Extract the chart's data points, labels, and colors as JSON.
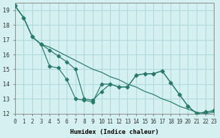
{
  "xlabel": "Humidex (Indice chaleur)",
  "ylabel": "",
  "background_color": "#d4f0f0",
  "grid_color": "#b0d8d8",
  "line_color": "#2a7a6a",
  "xlim": [
    0,
    23
  ],
  "ylim": [
    12,
    19.5
  ],
  "yticks": [
    12,
    13,
    14,
    15,
    16,
    17,
    18,
    19
  ],
  "xticks": [
    0,
    1,
    2,
    3,
    4,
    5,
    6,
    7,
    8,
    9,
    10,
    11,
    12,
    13,
    14,
    15,
    16,
    17,
    18,
    19,
    20,
    21,
    22,
    23
  ],
  "series": [
    [
      19.3,
      18.5,
      17.2,
      16.7,
      16.5,
      16.2,
      15.9,
      15.6,
      15.3,
      15.0,
      14.8,
      14.5,
      14.3,
      14.0,
      13.8,
      13.5,
      13.3,
      13.0,
      12.8,
      12.5,
      12.3,
      12.1,
      12.0,
      12.1
    ],
    [
      19.3,
      18.5,
      17.2,
      16.7,
      16.3,
      15.9,
      15.5,
      15.0,
      13.0,
      12.9,
      13.5,
      14.0,
      13.8,
      13.8,
      14.6,
      14.7,
      14.7,
      14.9,
      14.1,
      13.3,
      12.5,
      12.0,
      12.1,
      12.2
    ],
    [
      19.3,
      18.5,
      17.2,
      16.7,
      15.2,
      15.1,
      14.3,
      13.0,
      12.9,
      12.8,
      14.0,
      14.0,
      13.8,
      13.8,
      14.6,
      14.7,
      14.7,
      14.9,
      14.1,
      13.3,
      12.5,
      12.0,
      12.1,
      12.2
    ]
  ],
  "marker": "D",
  "markersize": 2.5,
  "linewidth": 0.9
}
